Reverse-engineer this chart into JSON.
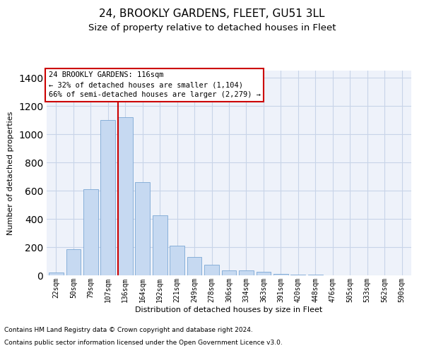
{
  "title1": "24, BROOKLY GARDENS, FLEET, GU51 3LL",
  "title2": "Size of property relative to detached houses in Fleet",
  "xlabel": "Distribution of detached houses by size in Fleet",
  "ylabel": "Number of detached properties",
  "footnote1": "Contains HM Land Registry data © Crown copyright and database right 2024.",
  "footnote2": "Contains public sector information licensed under the Open Government Licence v3.0.",
  "annotation_line1": "24 BROOKLY GARDENS: 116sqm",
  "annotation_line2": "← 32% of detached houses are smaller (1,104)",
  "annotation_line3": "66% of semi-detached houses are larger (2,279) →",
  "bar_labels": [
    "22sqm",
    "50sqm",
    "79sqm",
    "107sqm",
    "136sqm",
    "164sqm",
    "192sqm",
    "221sqm",
    "249sqm",
    "278sqm",
    "306sqm",
    "334sqm",
    "363sqm",
    "391sqm",
    "420sqm",
    "448sqm",
    "476sqm",
    "505sqm",
    "533sqm",
    "562sqm",
    "590sqm"
  ],
  "bar_values": [
    20,
    185,
    610,
    1100,
    1120,
    660,
    425,
    210,
    130,
    75,
    35,
    35,
    25,
    10,
    5,
    5,
    2,
    1,
    1,
    1,
    0
  ],
  "bar_color": "#c6d9f1",
  "bar_edge_color": "#7ba7d4",
  "vline_x": 3.57,
  "vline_color": "#cc0000",
  "ylim": [
    0,
    1450
  ],
  "yticks": [
    0,
    200,
    400,
    600,
    800,
    1000,
    1200,
    1400
  ],
  "grid_color": "#c8d4e8",
  "bg_color": "#eef2fa",
  "annotation_box_color": "#cc0000",
  "title1_fontsize": 11,
  "title2_fontsize": 9.5,
  "axis_label_fontsize": 8,
  "tick_fontsize": 7,
  "annotation_fontsize": 7.5,
  "footnote_fontsize": 6.5
}
